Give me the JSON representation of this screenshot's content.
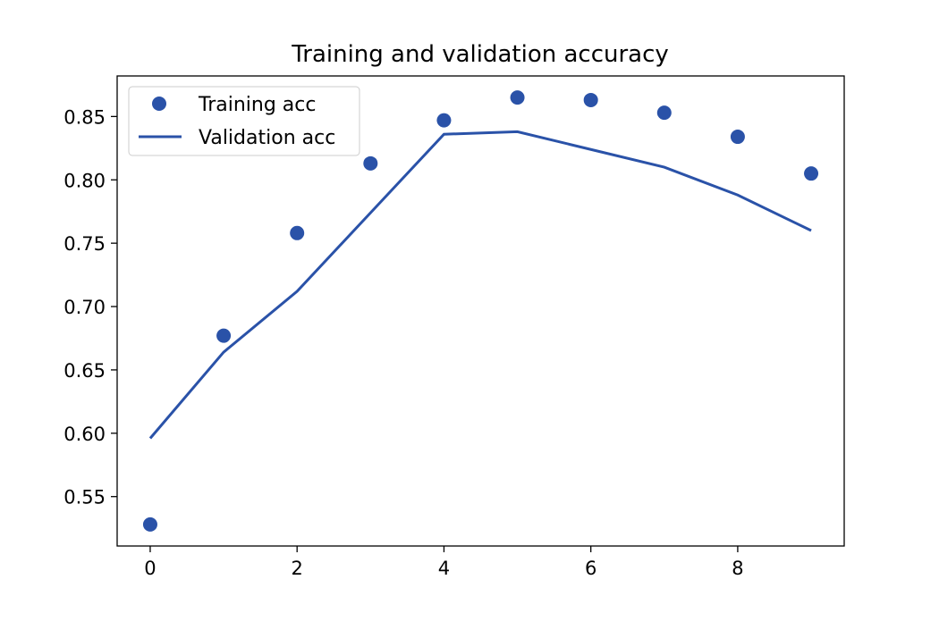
{
  "chart_data": {
    "type": "line",
    "title": "Training and validation accuracy",
    "xlabel": "",
    "ylabel": "",
    "x": [
      0,
      1,
      2,
      3,
      4,
      5,
      6,
      7,
      8,
      9
    ],
    "series": [
      {
        "name": "Training acc",
        "style": "scatter",
        "color": "#2a52a8",
        "values": [
          0.528,
          0.677,
          0.758,
          0.813,
          0.847,
          0.865,
          0.863,
          0.853,
          0.834,
          0.805
        ]
      },
      {
        "name": "Validation acc",
        "style": "line",
        "color": "#2a52a8",
        "values": [
          0.596,
          0.664,
          0.712,
          0.774,
          0.836,
          0.838,
          0.824,
          0.81,
          0.788,
          0.76
        ]
      }
    ],
    "xlim": [
      -0.45,
      9.45
    ],
    "ylim": [
      0.511,
      0.882
    ],
    "xticks": [
      0,
      2,
      4,
      6,
      8
    ],
    "xtick_labels": [
      "0",
      "2",
      "4",
      "6",
      "8"
    ],
    "yticks": [
      0.55,
      0.6,
      0.65,
      0.7,
      0.75,
      0.8,
      0.85
    ],
    "ytick_labels": [
      "0.55",
      "0.60",
      "0.65",
      "0.70",
      "0.75",
      "0.80",
      "0.85"
    ],
    "grid": false,
    "legend_position": "top-left"
  }
}
